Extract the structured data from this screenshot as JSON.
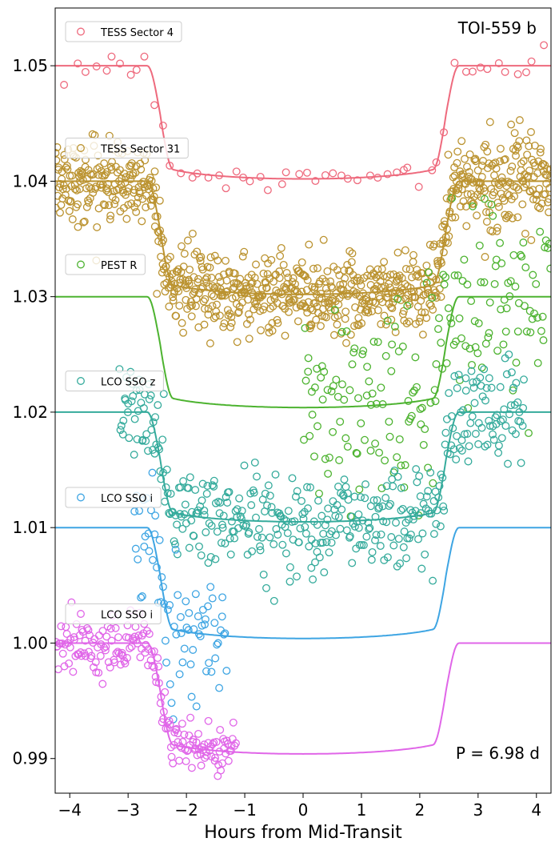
{
  "chart_data": {
    "type": "scatter",
    "title": "TOI-559 b",
    "xlabel": "Hours from Mid-Transit",
    "ylabel": "",
    "annotation": "P = 6.98 d",
    "xlim": [
      -4.25,
      4.25
    ],
    "ylim": [
      0.987,
      1.055
    ],
    "x_ticks": [
      -4,
      -3,
      -2,
      -1,
      0,
      1,
      2,
      3,
      4
    ],
    "x_tick_labels": [
      "−4",
      "−3",
      "−2",
      "−1",
      "0",
      "1",
      "2",
      "3",
      "4"
    ],
    "y_ticks": [
      0.99,
      1.0,
      1.01,
      1.02,
      1.03,
      1.04,
      1.05
    ],
    "y_tick_labels": [
      "0.99",
      "1.00",
      "1.01",
      "1.02",
      "1.03",
      "1.04",
      "1.05"
    ],
    "grid": false,
    "legend_placement": "left, one box beside each light curve",
    "series": [
      {
        "name": "TESS Sector 4",
        "color": "#ee6a7d",
        "baseline": 1.05,
        "depth": 0.0098,
        "x_range": [
          -4.1,
          4.2
        ],
        "n_points": 55,
        "scatter": 0.0006,
        "model_x_range": [
          -4.25,
          4.25
        ],
        "model_width": 2.45,
        "model_edge": 0.22
      },
      {
        "name": "TESS Sector 31",
        "color": "#bb9330",
        "baseline": 1.04,
        "depth": 0.0098,
        "x_range": [
          -4.25,
          4.25
        ],
        "n_points": 900,
        "scatter": 0.0017,
        "model_x_range": null,
        "model_width": 2.45,
        "model_edge": 0.22
      },
      {
        "name": "PEST R",
        "color": "#4db330",
        "baseline": 1.03,
        "depth": 0.0096,
        "x_range": [
          0.0,
          4.25
        ],
        "n_points": 190,
        "scatter": 0.0045,
        "model_x_range": [
          -4.25,
          4.25
        ],
        "model_width": 2.45,
        "model_edge": 0.22
      },
      {
        "name": "LCO SSO z",
        "color": "#35ab9c",
        "baseline": 1.02,
        "depth": 0.0095,
        "x_range": [
          -3.15,
          3.8
        ],
        "n_points": 420,
        "scatter": 0.0022,
        "model_x_range": [
          -4.25,
          4.25
        ],
        "model_width": 2.45,
        "model_edge": 0.22
      },
      {
        "name": "LCO SSO i",
        "color": "#3ea5e3",
        "baseline": 1.01,
        "depth": 0.0096,
        "x_range": [
          -2.9,
          -1.3
        ],
        "n_points": 75,
        "scatter": 0.0028,
        "model_x_range": [
          -4.25,
          4.25
        ],
        "model_width": 2.45,
        "model_edge": 0.22
      },
      {
        "name": "LCO SSO i",
        "color": "#e066e8",
        "baseline": 1.0,
        "depth": 0.0096,
        "x_range": [
          -4.25,
          -1.15
        ],
        "n_points": 190,
        "scatter": 0.0011,
        "model_x_range": [
          -4.25,
          4.25
        ],
        "model_width": 2.45,
        "model_edge": 0.22
      }
    ]
  }
}
